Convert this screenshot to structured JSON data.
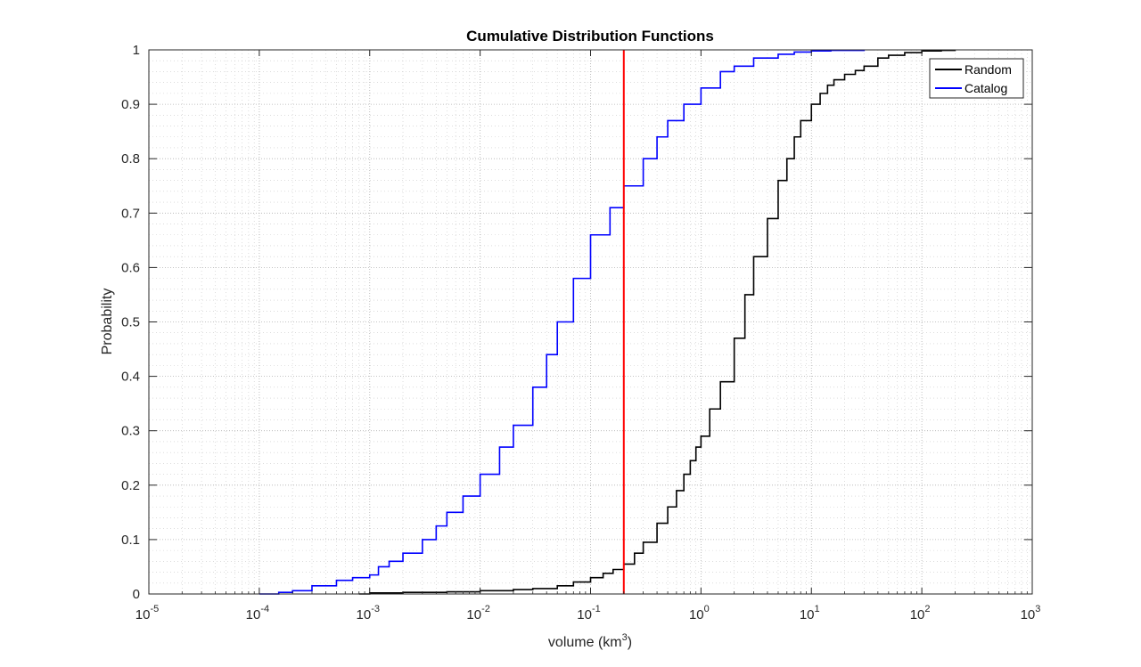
{
  "chart_data": {
    "type": "line",
    "title": "Cumulative Distribution Functions",
    "xlabel": "volume (km",
    "xlabel_sup": "3",
    "xlabel_suffix": ")",
    "ylabel": "Probability",
    "xscale": "log",
    "xlim": [
      1e-05,
      1000
    ],
    "ylim": [
      0,
      1
    ],
    "x_ticks": [
      {
        "base": "10",
        "exp": "-5",
        "value": 1e-05
      },
      {
        "base": "10",
        "exp": "-4",
        "value": 0.0001
      },
      {
        "base": "10",
        "exp": "-3",
        "value": 0.001
      },
      {
        "base": "10",
        "exp": "-2",
        "value": 0.01
      },
      {
        "base": "10",
        "exp": "-1",
        "value": 0.1
      },
      {
        "base": "10",
        "exp": "0",
        "value": 1
      },
      {
        "base": "10",
        "exp": "1",
        "value": 10
      },
      {
        "base": "10",
        "exp": "2",
        "value": 100
      },
      {
        "base": "10",
        "exp": "3",
        "value": 1000
      }
    ],
    "y_ticks": [
      {
        "label": "0",
        "value": 0
      },
      {
        "label": "0.1",
        "value": 0.1
      },
      {
        "label": "0.2",
        "value": 0.2
      },
      {
        "label": "0.3",
        "value": 0.3
      },
      {
        "label": "0.4",
        "value": 0.4
      },
      {
        "label": "0.5",
        "value": 0.5
      },
      {
        "label": "0.6",
        "value": 0.6
      },
      {
        "label": "0.7",
        "value": 0.7
      },
      {
        "label": "0.8",
        "value": 0.8
      },
      {
        "label": "0.9",
        "value": 0.9
      },
      {
        "label": "1",
        "value": 1
      }
    ],
    "grid": true,
    "minor_grid": true,
    "legend_position": "top-right",
    "series": [
      {
        "name": "Random",
        "color": "#000000",
        "x": [
          0.0008,
          0.001,
          0.002,
          0.005,
          0.01,
          0.02,
          0.03,
          0.05,
          0.07,
          0.1,
          0.13,
          0.16,
          0.2,
          0.25,
          0.3,
          0.4,
          0.5,
          0.6,
          0.7,
          0.8,
          0.9,
          1.0,
          1.2,
          1.5,
          2.0,
          2.5,
          3.0,
          4.0,
          5.0,
          6.0,
          7.0,
          8.0,
          10,
          12,
          14,
          16,
          20,
          25,
          30,
          40,
          50,
          70,
          100,
          150,
          200
        ],
        "y": [
          0.0,
          0.002,
          0.003,
          0.004,
          0.006,
          0.008,
          0.01,
          0.015,
          0.022,
          0.03,
          0.038,
          0.045,
          0.055,
          0.075,
          0.095,
          0.13,
          0.16,
          0.19,
          0.22,
          0.245,
          0.27,
          0.29,
          0.34,
          0.39,
          0.47,
          0.55,
          0.62,
          0.69,
          0.76,
          0.8,
          0.84,
          0.87,
          0.9,
          0.92,
          0.935,
          0.945,
          0.955,
          0.962,
          0.97,
          0.985,
          0.99,
          0.995,
          0.998,
          0.999,
          1.0
        ]
      },
      {
        "name": "Catalog",
        "color": "#0000ff",
        "x": [
          0.0001,
          0.00015,
          0.0002,
          0.0003,
          0.0005,
          0.0007,
          0.001,
          0.0012,
          0.0015,
          0.002,
          0.003,
          0.004,
          0.005,
          0.007,
          0.01,
          0.015,
          0.02,
          0.03,
          0.04,
          0.05,
          0.07,
          0.1,
          0.15,
          0.2,
          0.3,
          0.4,
          0.5,
          0.7,
          1.0,
          1.5,
          2,
          3,
          5,
          7,
          10,
          15,
          20,
          30
        ],
        "y": [
          0.0,
          0.003,
          0.006,
          0.015,
          0.025,
          0.03,
          0.035,
          0.05,
          0.06,
          0.075,
          0.1,
          0.125,
          0.15,
          0.18,
          0.22,
          0.27,
          0.31,
          0.38,
          0.44,
          0.5,
          0.58,
          0.66,
          0.71,
          0.75,
          0.8,
          0.84,
          0.87,
          0.9,
          0.93,
          0.96,
          0.97,
          0.985,
          0.992,
          0.996,
          0.998,
          0.999,
          0.999,
          1.0
        ]
      }
    ],
    "reference_line": {
      "x": 0.2,
      "color": "#ff0000"
    }
  }
}
